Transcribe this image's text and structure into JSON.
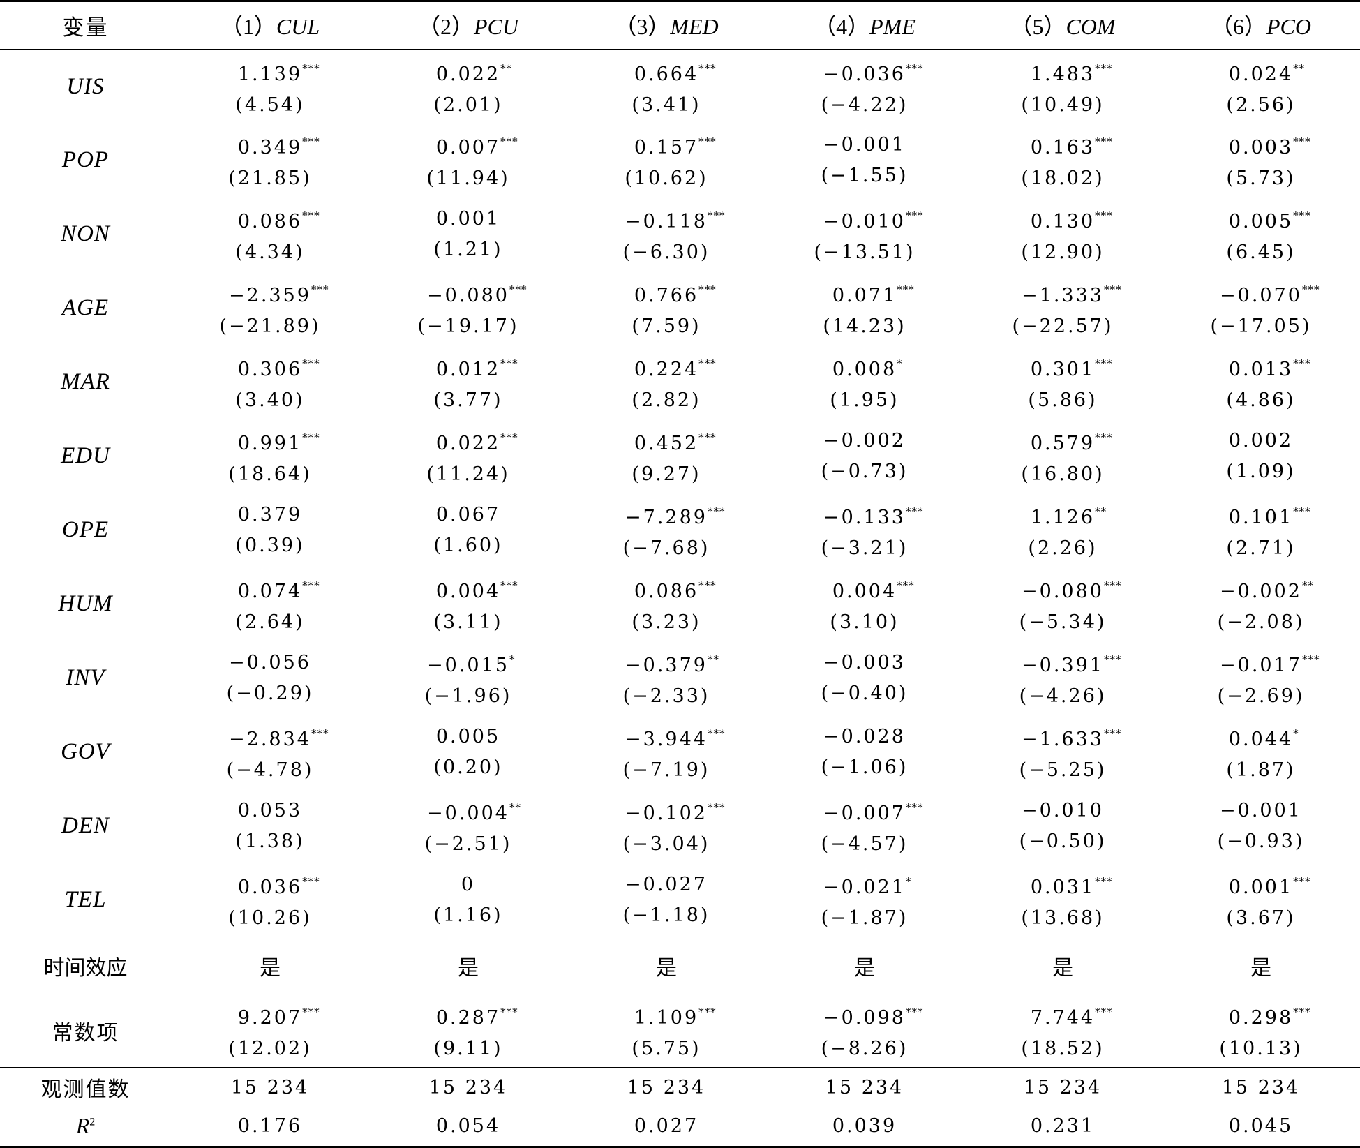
{
  "header": {
    "var_label": "变量",
    "columns": [
      {
        "num": "（1）",
        "name": "CUL"
      },
      {
        "num": "（2）",
        "name": "PCU"
      },
      {
        "num": "（3）",
        "name": "MED"
      },
      {
        "num": "（4）",
        "name": "PME"
      },
      {
        "num": "（5）",
        "name": "COM"
      },
      {
        "num": "（6）",
        "name": "PCO"
      }
    ]
  },
  "rows": [
    {
      "var": "UIS",
      "cells": [
        {
          "coef": "1.139",
          "stars": "***",
          "t": "(4.54)"
        },
        {
          "coef": "0.022",
          "stars": "**",
          "t": "(2.01)"
        },
        {
          "coef": "0.664",
          "stars": "***",
          "t": "(3.41)"
        },
        {
          "coef": "−0.036",
          "stars": "***",
          "t": "(−4.22)"
        },
        {
          "coef": "1.483",
          "stars": "***",
          "t": "(10.49)"
        },
        {
          "coef": "0.024",
          "stars": "**",
          "t": "(2.56)"
        }
      ]
    },
    {
      "var": "POP",
      "cells": [
        {
          "coef": "0.349",
          "stars": "***",
          "t": "(21.85)"
        },
        {
          "coef": "0.007",
          "stars": "***",
          "t": "(11.94)"
        },
        {
          "coef": "0.157",
          "stars": "***",
          "t": "(10.62)"
        },
        {
          "coef": "−0.001",
          "stars": "",
          "t": "(−1.55)"
        },
        {
          "coef": "0.163",
          "stars": "***",
          "t": "(18.02)"
        },
        {
          "coef": "0.003",
          "stars": "***",
          "t": "(5.73)"
        }
      ]
    },
    {
      "var": "NON",
      "cells": [
        {
          "coef": "0.086",
          "stars": "***",
          "t": "(4.34)"
        },
        {
          "coef": "0.001",
          "stars": "",
          "t": "(1.21)"
        },
        {
          "coef": "−0.118",
          "stars": "***",
          "t": "(−6.30)"
        },
        {
          "coef": "−0.010",
          "stars": "***",
          "t": "(−13.51)"
        },
        {
          "coef": "0.130",
          "stars": "***",
          "t": "(12.90)"
        },
        {
          "coef": "0.005",
          "stars": "***",
          "t": "(6.45)"
        }
      ]
    },
    {
      "var": "AGE",
      "cells": [
        {
          "coef": "−2.359",
          "stars": "***",
          "t": "(−21.89)"
        },
        {
          "coef": "−0.080",
          "stars": "***",
          "t": "(−19.17)"
        },
        {
          "coef": "0.766",
          "stars": "***",
          "t": "(7.59)"
        },
        {
          "coef": "0.071",
          "stars": "***",
          "t": "(14.23)"
        },
        {
          "coef": "−1.333",
          "stars": "***",
          "t": "(−22.57)"
        },
        {
          "coef": "−0.070",
          "stars": "***",
          "t": "(−17.05)"
        }
      ]
    },
    {
      "var": "MAR",
      "cells": [
        {
          "coef": "0.306",
          "stars": "***",
          "t": "(3.40)"
        },
        {
          "coef": "0.012",
          "stars": "***",
          "t": "(3.77)"
        },
        {
          "coef": "0.224",
          "stars": "***",
          "t": "(2.82)"
        },
        {
          "coef": "0.008",
          "stars": "*",
          "t": "(1.95)"
        },
        {
          "coef": "0.301",
          "stars": "***",
          "t": "(5.86)"
        },
        {
          "coef": "0.013",
          "stars": "***",
          "t": "(4.86)"
        }
      ]
    },
    {
      "var": "EDU",
      "cells": [
        {
          "coef": "0.991",
          "stars": "***",
          "t": "(18.64)"
        },
        {
          "coef": "0.022",
          "stars": "***",
          "t": "(11.24)"
        },
        {
          "coef": "0.452",
          "stars": "***",
          "t": "(9.27)"
        },
        {
          "coef": "−0.002",
          "stars": "",
          "t": "(−0.73)"
        },
        {
          "coef": "0.579",
          "stars": "***",
          "t": "(16.80)"
        },
        {
          "coef": "0.002",
          "stars": "",
          "t": "(1.09)"
        }
      ]
    },
    {
      "var": "OPE",
      "cells": [
        {
          "coef": "0.379",
          "stars": "",
          "t": "(0.39)"
        },
        {
          "coef": "0.067",
          "stars": "",
          "t": "(1.60)"
        },
        {
          "coef": "−7.289",
          "stars": "***",
          "t": "(−7.68)"
        },
        {
          "coef": "−0.133",
          "stars": "***",
          "t": "(−3.21)"
        },
        {
          "coef": "1.126",
          "stars": "**",
          "t": "(2.26)"
        },
        {
          "coef": "0.101",
          "stars": "***",
          "t": "(2.71)"
        }
      ]
    },
    {
      "var": "HUM",
      "cells": [
        {
          "coef": "0.074",
          "stars": "***",
          "t": "(2.64)"
        },
        {
          "coef": "0.004",
          "stars": "***",
          "t": "(3.11)"
        },
        {
          "coef": "0.086",
          "stars": "***",
          "t": "(3.23)"
        },
        {
          "coef": "0.004",
          "stars": "***",
          "t": "(3.10)"
        },
        {
          "coef": "−0.080",
          "stars": "***",
          "t": "(−5.34)"
        },
        {
          "coef": "−0.002",
          "stars": "**",
          "t": "(−2.08)"
        }
      ]
    },
    {
      "var": "INV",
      "cells": [
        {
          "coef": "−0.056",
          "stars": "",
          "t": "(−0.29)"
        },
        {
          "coef": "−0.015",
          "stars": "*",
          "t": "(−1.96)"
        },
        {
          "coef": "−0.379",
          "stars": "**",
          "t": "(−2.33)"
        },
        {
          "coef": "−0.003",
          "stars": "",
          "t": "(−0.40)"
        },
        {
          "coef": "−0.391",
          "stars": "***",
          "t": "(−4.26)"
        },
        {
          "coef": "−0.017",
          "stars": "***",
          "t": "(−2.69)"
        }
      ]
    },
    {
      "var": "GOV",
      "cells": [
        {
          "coef": "−2.834",
          "stars": "***",
          "t": "(−4.78)"
        },
        {
          "coef": "0.005",
          "stars": "",
          "t": "(0.20)"
        },
        {
          "coef": "−3.944",
          "stars": "***",
          "t": "(−7.19)"
        },
        {
          "coef": "−0.028",
          "stars": "",
          "t": "(−1.06)"
        },
        {
          "coef": "−1.633",
          "stars": "***",
          "t": "(−5.25)"
        },
        {
          "coef": "0.044",
          "stars": "*",
          "t": "(1.87)"
        }
      ]
    },
    {
      "var": "DEN",
      "cells": [
        {
          "coef": "0.053",
          "stars": "",
          "t": "(1.38)"
        },
        {
          "coef": "−0.004",
          "stars": "**",
          "t": "(−2.51)"
        },
        {
          "coef": "−0.102",
          "stars": "***",
          "t": "(−3.04)"
        },
        {
          "coef": "−0.007",
          "stars": "***",
          "t": "(−4.57)"
        },
        {
          "coef": "−0.010",
          "stars": "",
          "t": "(−0.50)"
        },
        {
          "coef": "−0.001",
          "stars": "",
          "t": "(−0.93)"
        }
      ]
    },
    {
      "var": "TEL",
      "cells": [
        {
          "coef": "0.036",
          "stars": "***",
          "t": "(10.26)"
        },
        {
          "coef": "0",
          "stars": "",
          "t": "(1.16)"
        },
        {
          "coef": "−0.027",
          "stars": "",
          "t": "(−1.18)"
        },
        {
          "coef": "−0.021",
          "stars": "*",
          "t": "(−1.87)"
        },
        {
          "coef": "0.031",
          "stars": "***",
          "t": "(13.68)"
        },
        {
          "coef": "0.001",
          "stars": "***",
          "t": "(3.67)"
        }
      ]
    }
  ],
  "time_effect": {
    "label": "时间效应",
    "values": [
      "是",
      "是",
      "是",
      "是",
      "是",
      "是"
    ]
  },
  "constant": {
    "label": "常数项",
    "cells": [
      {
        "coef": "9.207",
        "stars": "***",
        "t": "(12.02)"
      },
      {
        "coef": "0.287",
        "stars": "***",
        "t": "(9.11)"
      },
      {
        "coef": "1.109",
        "stars": "***",
        "t": "(5.75)"
      },
      {
        "coef": "−0.098",
        "stars": "***",
        "t": "(−8.26)"
      },
      {
        "coef": "7.744",
        "stars": "***",
        "t": "(18.52)"
      },
      {
        "coef": "0.298",
        "stars": "***",
        "t": "(10.13)"
      }
    ]
  },
  "observations": {
    "label": "观测值数",
    "values": [
      "15 234",
      "15 234",
      "15 234",
      "15 234",
      "15 234",
      "15 234"
    ]
  },
  "r_squared": {
    "label_base": "R",
    "label_sup": "2",
    "values": [
      "0.176",
      "0.054",
      "0.027",
      "0.039",
      "0.231",
      "0.045"
    ]
  }
}
